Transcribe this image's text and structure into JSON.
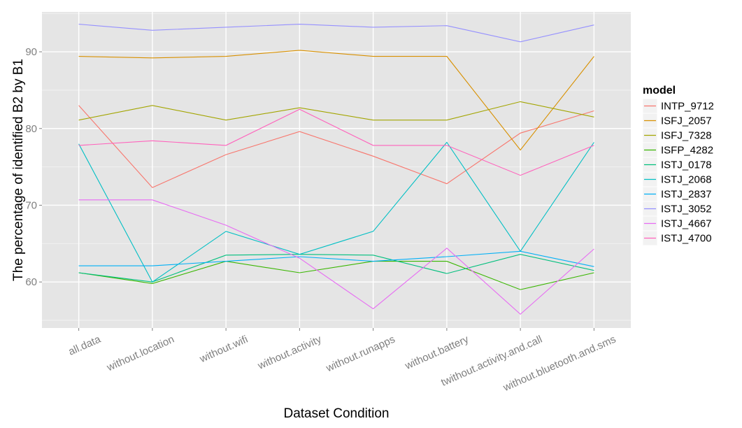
{
  "chart_data": {
    "type": "line",
    "xlabel": "Dataset Condition",
    "ylabel": "The percentage of identified B2 by B1",
    "ylim": [
      54,
      95.2
    ],
    "yticks": [
      60,
      70,
      80,
      90
    ],
    "grid": true,
    "legend_title": "model",
    "legend_position": "right",
    "categories": [
      "all.data",
      "without.location",
      "without.wifi",
      "without.activity",
      "without.runapps",
      "without.battery",
      "twithout.activity.and.call",
      "without.bluetooth.and.sms"
    ],
    "series": [
      {
        "name": "INTP_9712",
        "color": "#F8766D",
        "values": [
          83.0,
          72.3,
          76.6,
          79.6,
          76.4,
          72.8,
          79.4,
          82.3
        ]
      },
      {
        "name": "ISFJ_2057",
        "color": "#D89000",
        "values": [
          89.4,
          89.2,
          89.4,
          90.2,
          89.4,
          89.4,
          77.2,
          89.4
        ]
      },
      {
        "name": "ISFJ_7328",
        "color": "#A3A500",
        "values": [
          81.1,
          83.0,
          81.1,
          82.7,
          81.1,
          81.1,
          83.5,
          81.5
        ]
      },
      {
        "name": "ISFP_4282",
        "color": "#39B600",
        "values": [
          61.2,
          59.8,
          62.7,
          61.2,
          62.7,
          62.7,
          59.0,
          61.2
        ]
      },
      {
        "name": "ISTJ_0178",
        "color": "#00BF7D",
        "values": [
          61.2,
          60.0,
          63.5,
          63.6,
          63.5,
          61.1,
          63.6,
          61.5
        ]
      },
      {
        "name": "ISTJ_2068",
        "color": "#00BFC4",
        "values": [
          78.0,
          60.0,
          66.6,
          63.6,
          66.6,
          78.2,
          64.0,
          78.2
        ]
      },
      {
        "name": "ISTJ_2837",
        "color": "#00B0F6",
        "values": [
          62.1,
          62.1,
          62.7,
          63.3,
          62.7,
          63.3,
          64.0,
          62.0
        ]
      },
      {
        "name": "ISTJ_3052",
        "color": "#9590FF",
        "values": [
          93.6,
          92.8,
          93.2,
          93.6,
          93.2,
          93.4,
          91.3,
          93.5
        ]
      },
      {
        "name": "ISTJ_4667",
        "color": "#E76BF3",
        "values": [
          70.7,
          70.7,
          67.4,
          63.1,
          56.5,
          64.4,
          55.8,
          64.3
        ]
      },
      {
        "name": "ISTJ_4700",
        "color": "#FF62BC",
        "values": [
          77.8,
          78.4,
          77.8,
          82.5,
          77.8,
          77.8,
          73.9,
          77.8
        ]
      }
    ]
  },
  "colors": {
    "panel_background": "#E5E5E5",
    "grid_major": "#FFFFFF",
    "tick_text": "#7F7F7F"
  }
}
